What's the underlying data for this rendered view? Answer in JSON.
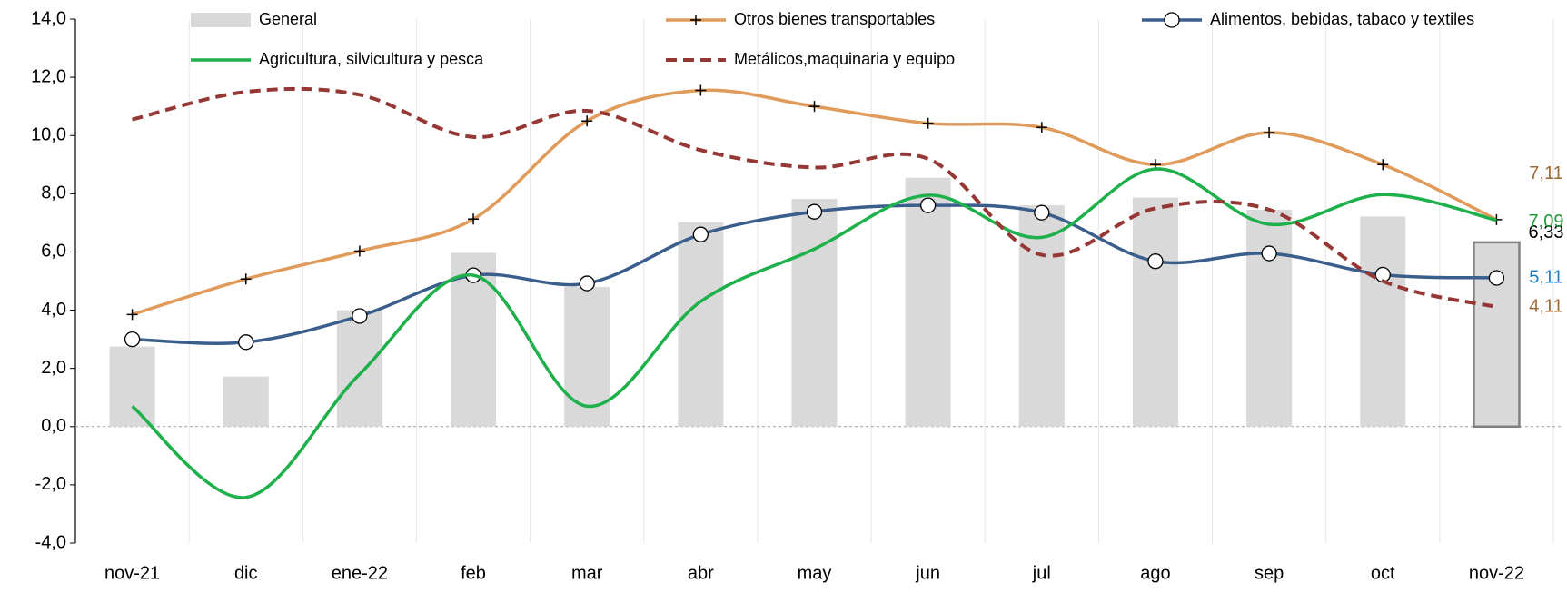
{
  "chart_data": {
    "type": "bar",
    "categories": [
      "nov-21",
      "dic",
      "ene-22",
      "feb",
      "mar",
      "abr",
      "may",
      "jun",
      "jul",
      "ago",
      "sep",
      "oct",
      "nov-22"
    ],
    "ylim": [
      -4,
      14
    ],
    "yticks": [
      {
        "value": -4,
        "label": "-4,0"
      },
      {
        "value": -2,
        "label": "-2,0"
      },
      {
        "value": 0,
        "label": "0,0"
      },
      {
        "value": 2,
        "label": "2,0"
      },
      {
        "value": 4,
        "label": "4,0"
      },
      {
        "value": 6,
        "label": "6,0"
      },
      {
        "value": 8,
        "label": "8,0"
      },
      {
        "value": 10,
        "label": "10,0"
      },
      {
        "value": 12,
        "label": "12,0"
      },
      {
        "value": 14,
        "label": "14,0"
      }
    ],
    "grid": "x",
    "series": [
      {
        "name": "General",
        "type": "bar",
        "color": "#d9d9d9",
        "label_color": "#000000",
        "values": [
          2.75,
          1.72,
          4.0,
          5.97,
          4.8,
          7.02,
          7.82,
          8.55,
          7.6,
          7.87,
          7.45,
          7.22,
          6.33
        ],
        "value_labels": [
          null,
          null,
          null,
          null,
          null,
          null,
          null,
          null,
          null,
          null,
          null,
          null,
          "6,33"
        ]
      },
      {
        "name": "Otros bienes transportables",
        "type": "line",
        "color": "#e09a5a",
        "marker": "plus",
        "label_color": "#9c6a35",
        "values": [
          3.85,
          5.07,
          6.03,
          7.13,
          10.5,
          11.55,
          11.0,
          10.42,
          10.28,
          9.0,
          10.1,
          9.0,
          7.11
        ],
        "value_labels": [
          null,
          null,
          null,
          null,
          null,
          null,
          null,
          null,
          null,
          null,
          null,
          null,
          "7,11"
        ]
      },
      {
        "name": "Alimentos, bebidas, tabaco y textiles",
        "type": "line",
        "color": "#3a5e8c",
        "marker": "circle",
        "label_color": "#1f7fc4",
        "values": [
          3.0,
          2.9,
          3.8,
          5.2,
          4.92,
          6.6,
          7.38,
          7.6,
          7.35,
          5.68,
          5.95,
          5.22,
          5.11
        ],
        "value_labels": [
          null,
          null,
          null,
          null,
          null,
          null,
          null,
          null,
          null,
          null,
          null,
          null,
          "5,11"
        ]
      },
      {
        "name": "Agricultura, silvicultura y pesca",
        "type": "line",
        "color": "#1db04b",
        "label_color": "#1e9a3c",
        "values": [
          0.7,
          -2.43,
          1.8,
          5.2,
          0.7,
          4.3,
          6.1,
          7.95,
          6.5,
          8.85,
          6.95,
          7.97,
          7.09
        ],
        "value_labels": [
          null,
          null,
          null,
          null,
          null,
          null,
          null,
          null,
          null,
          null,
          null,
          null,
          "7,09"
        ]
      },
      {
        "name": "Metálicos,maquinaria y equipo",
        "type": "line",
        "color": "#953735",
        "style": "dashed",
        "label_color": "#9c6a35",
        "values": [
          10.55,
          11.5,
          11.4,
          9.95,
          10.85,
          9.5,
          8.9,
          9.2,
          5.9,
          7.5,
          7.45,
          5.0,
          4.11
        ],
        "value_labels": [
          null,
          null,
          null,
          null,
          null,
          null,
          null,
          null,
          null,
          null,
          null,
          null,
          "4,11"
        ]
      }
    ]
  }
}
